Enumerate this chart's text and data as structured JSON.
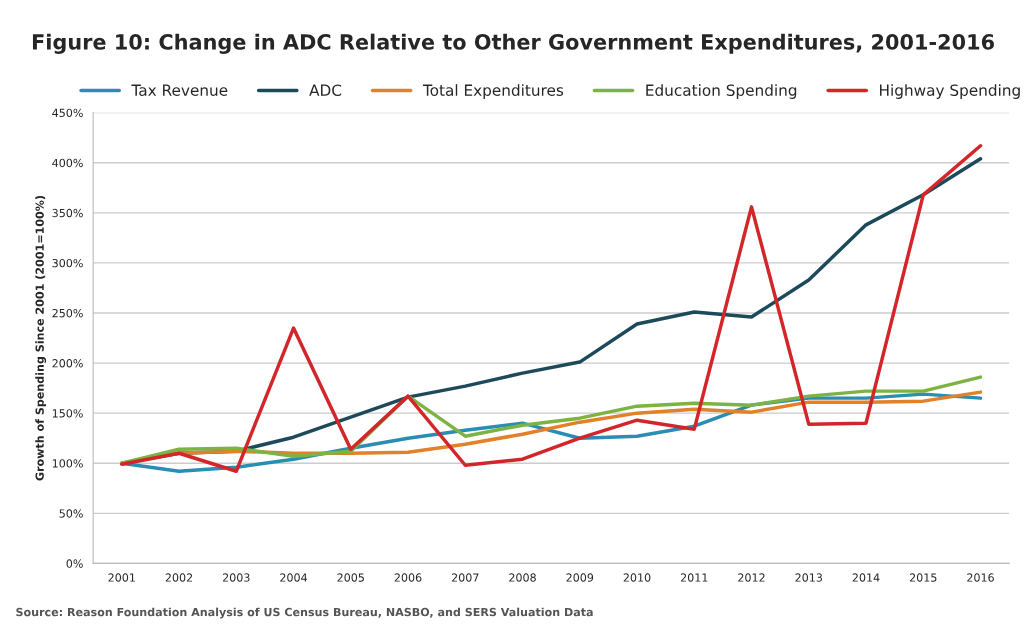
{
  "chart_data": {
    "type": "line",
    "title": "Figure 10: Change in ADC Relative to Other Government Expenditures, 2001-2016",
    "ylabel": "Growth of Spending Since 2001 (2001=100%)",
    "annotations": [
      "Source: Reason Foundation Analysis of US Census Bureau, NASBO, and SERS Valuation Data"
    ],
    "categories": [
      "2001",
      "2002",
      "2003",
      "2004",
      "2005",
      "2006",
      "2007",
      "2008",
      "2009",
      "2010",
      "2011",
      "2012",
      "2013",
      "2014",
      "2015",
      "2016"
    ],
    "series": [
      {
        "name": "Tax Revenue",
        "color": "#2b8cb4",
        "values": [
          100,
          92,
          96,
          104,
          115,
          125,
          133,
          140,
          125,
          127,
          137,
          158,
          165,
          165,
          169,
          165
        ]
      },
      {
        "name": "ADC",
        "color": "#1d4a5a",
        "values": [
          100,
          110,
          112,
          126,
          146,
          166,
          177,
          190,
          201,
          239,
          251,
          246,
          283,
          338,
          368,
          404
        ]
      },
      {
        "name": "Total Expenditures",
        "color": "#e3802a",
        "values": [
          100,
          110,
          112,
          110,
          110,
          111,
          119,
          129,
          141,
          150,
          154,
          151,
          161,
          161,
          162,
          171
        ]
      },
      {
        "name": "Education Spending",
        "color": "#7cb342",
        "values": [
          100,
          114,
          115,
          107,
          112,
          167,
          127,
          138,
          145,
          157,
          160,
          158,
          167,
          172,
          172,
          186
        ]
      },
      {
        "name": "Highway Spending",
        "color": "#d3262b",
        "values": [
          99,
          110,
          92,
          235,
          114,
          167,
          98,
          104,
          125,
          143,
          134,
          356,
          139,
          140,
          368,
          417
        ]
      }
    ],
    "ylim": [
      0,
      450
    ],
    "yticks": [
      {
        "value": 0,
        "label": "0%"
      },
      {
        "value": 50,
        "label": "50%"
      },
      {
        "value": 100,
        "label": "100%"
      },
      {
        "value": 150,
        "label": "150%"
      },
      {
        "value": 200,
        "label": "200%"
      },
      {
        "value": 250,
        "label": "250%"
      },
      {
        "value": 300,
        "label": "300%"
      },
      {
        "value": 350,
        "label": "350%"
      },
      {
        "value": 400,
        "label": "400%"
      },
      {
        "value": 450,
        "label": "450%"
      }
    ],
    "grid": "y",
    "legend": "top",
    "marker": "none",
    "line_style": "solid"
  }
}
